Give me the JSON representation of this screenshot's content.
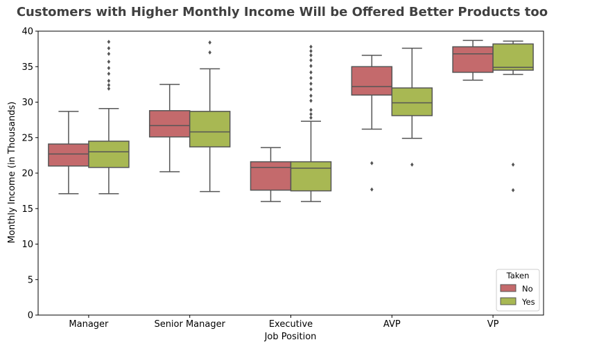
{
  "chart_data": {
    "type": "box",
    "title": "Customers with Higher Monthly Income Will be Offered Better Products too",
    "xlabel": "Job Position",
    "ylabel": "Monthly Income (in Thousands)",
    "ylim": [
      0,
      40
    ],
    "yticks": [
      0,
      5,
      10,
      15,
      20,
      25,
      30,
      35,
      40
    ],
    "categories": [
      "Manager",
      "Senior Manager",
      "Executive",
      "AVP",
      "VP"
    ],
    "legend": {
      "title": "Taken",
      "position": "bottom-right"
    },
    "series": [
      {
        "name": "No",
        "color": "#c46a6c",
        "boxes": [
          {
            "whislo": 17.1,
            "q1": 21.0,
            "med": 22.7,
            "q3": 24.1,
            "whishi": 28.7,
            "fliers": []
          },
          {
            "whislo": 20.2,
            "q1": 25.1,
            "med": 26.7,
            "q3": 28.8,
            "whishi": 32.5,
            "fliers": []
          },
          {
            "whislo": 16.0,
            "q1": 17.6,
            "med": 20.8,
            "q3": 21.6,
            "whishi": 23.6,
            "fliers": []
          },
          {
            "whislo": 26.2,
            "q1": 31.0,
            "med": 32.2,
            "q3": 35.0,
            "whishi": 36.6,
            "fliers": [
              21.4,
              17.7
            ]
          },
          {
            "whislo": 33.1,
            "q1": 34.2,
            "med": 36.8,
            "q3": 37.8,
            "whishi": 38.7,
            "fliers": []
          }
        ]
      },
      {
        "name": "Yes",
        "color": "#a8b853",
        "boxes": [
          {
            "whislo": 17.1,
            "q1": 20.8,
            "med": 23.0,
            "q3": 24.5,
            "whishi": 29.1,
            "fliers": [
              31.9,
              32.4,
              33.0,
              34.0,
              34.8,
              35.7,
              36.8,
              37.6,
              38.5
            ]
          },
          {
            "whislo": 17.4,
            "q1": 23.7,
            "med": 25.8,
            "q3": 28.7,
            "whishi": 34.7,
            "fliers": [
              37.0,
              38.4
            ]
          },
          {
            "whislo": 16.0,
            "q1": 17.5,
            "med": 20.7,
            "q3": 21.6,
            "whishi": 27.3,
            "fliers": [
              27.8,
              28.3,
              28.9,
              30.2,
              30.9,
              31.8,
              32.6,
              33.4,
              34.2,
              35.1,
              35.9,
              36.6,
              37.2,
              37.8
            ]
          },
          {
            "whislo": 24.9,
            "q1": 28.1,
            "med": 29.9,
            "q3": 32.0,
            "whishi": 37.6,
            "fliers": [
              21.2
            ]
          },
          {
            "whislo": 33.9,
            "q1": 34.5,
            "med": 34.9,
            "q3": 38.2,
            "whishi": 38.6,
            "fliers": [
              21.2,
              17.6
            ]
          }
        ]
      }
    ],
    "grid": false
  }
}
